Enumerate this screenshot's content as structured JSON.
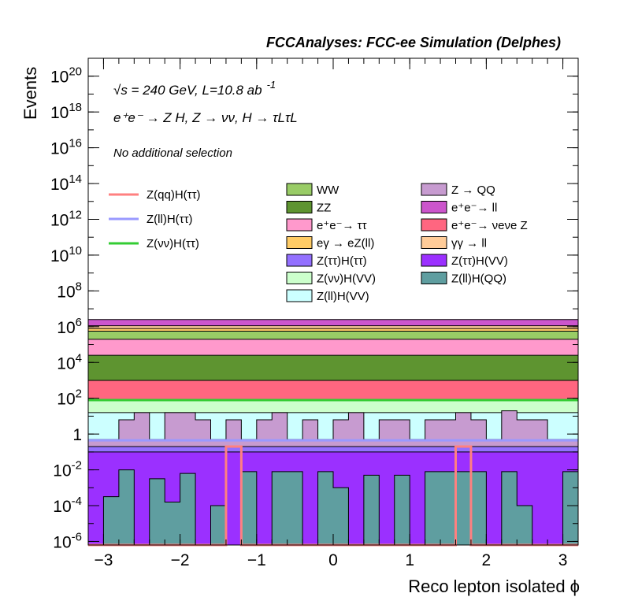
{
  "chart_data": {
    "type": "area",
    "title": "FCCAnalyses: FCC-ee Simulation (Delphes)",
    "xlabel": "Reco lepton isolated ϕ",
    "ylabel": "Events",
    "xlim": [
      -3.2,
      3.2
    ],
    "ylim_log10": [
      -6.2,
      21
    ],
    "yscale": "log",
    "x_ticks": [
      -3,
      -2,
      -1,
      0,
      1,
      2,
      3
    ],
    "y_ticks": [
      {
        "label": "10",
        "exp": "-6",
        "log": -6
      },
      {
        "label": "10",
        "exp": "-4",
        "log": -4
      },
      {
        "label": "10",
        "exp": "-2",
        "log": -2
      },
      {
        "label": "1",
        "exp": "",
        "log": 0
      },
      {
        "label": "10",
        "exp": "2",
        "log": 2
      },
      {
        "label": "10",
        "exp": "4",
        "log": 4
      },
      {
        "label": "10",
        "exp": "6",
        "log": 6
      },
      {
        "label": "10",
        "exp": "8",
        "log": 8
      },
      {
        "label": "10",
        "exp": "10",
        "log": 10
      },
      {
        "label": "10",
        "exp": "12",
        "log": 12
      },
      {
        "label": "10",
        "exp": "14",
        "log": 14
      },
      {
        "label": "10",
        "exp": "16",
        "log": 16
      },
      {
        "label": "10",
        "exp": "18",
        "log": 18
      },
      {
        "label": "10",
        "exp": "20",
        "log": 20
      }
    ],
    "annotations": {
      "sqrt_s": "√s = 240 GeV, L=10.8 ab",
      "sqrt_s_exp": "-1",
      "process": "e⁺e⁻ → Z H, Z → νν, H → τLτL",
      "selection": "No additional selection"
    },
    "stack_series": [
      {
        "name": "Z(ll)H(QQ)",
        "color": "#5f9ea0",
        "edges_log": [
          -6.2,
          -3.5,
          -2.0,
          -6.2,
          -2.5,
          -3.8,
          -2.2,
          -6.2,
          -4.0,
          -6.2,
          -2.1,
          -6.2,
          -2.1,
          -2.1,
          -6.2,
          -2.1,
          -3.0,
          -6.2,
          -2.3,
          -6.2,
          -2.3,
          -6.2,
          -2.1,
          -2.1,
          -2.1,
          -2.1,
          -6.2,
          -2.1,
          -4.0,
          -6.2,
          -6.2,
          -2.1
        ]
      },
      {
        "name": "Z(ττ)H(VV)",
        "color": "#9b30ff",
        "edges_log": [
          -1.0
        ]
      },
      {
        "name": "Z(ττ)H(ττ)",
        "color": "#9370ff",
        "edges_log": [
          -0.7
        ]
      },
      {
        "name": "Z → QQ",
        "color": "#c79bd0",
        "edges_log": [
          -0.3,
          -0.3,
          0.8,
          1.2,
          -0.3,
          1.2,
          1.2,
          0.8,
          -0.3,
          0.8,
          -0.3,
          0.8,
          1.2,
          -0.3,
          0.8,
          -0.3,
          0.8,
          1.2,
          -0.3,
          0.8,
          0.8,
          -0.3,
          0.8,
          0.8,
          1.2,
          0.8,
          -0.3,
          1.3,
          0.8,
          0.8,
          -0.3,
          -0.3
        ]
      },
      {
        "name": "Z(ll)H(VV)",
        "color": "#ccffff",
        "edges_log": [
          1.2
        ]
      },
      {
        "name": "Z(νν)H(VV)",
        "color": "#ccffcc",
        "edges_log": [
          1.9
        ]
      },
      {
        "name": "e⁺e⁻→ νeνe Z",
        "color": "#ff6680",
        "edges_log": [
          3.0
        ]
      },
      {
        "name": "ZZ",
        "color": "#5e9430",
        "edges_log": [
          4.4
        ]
      },
      {
        "name": "e⁺e⁻→ ττ",
        "color": "#ff99cc",
        "edges_log": [
          5.3
        ]
      },
      {
        "name": "WW",
        "color": "#99cc66",
        "edges_log": [
          5.75
        ]
      },
      {
        "name": "eγ → eZ(ll)",
        "color": "#ffcc66",
        "edges_log": [
          5.9
        ]
      },
      {
        "name": "γγ → ll",
        "color": "#ffcc99",
        "edges_log": [
          6.05
        ]
      },
      {
        "name": "e⁺e⁻→ ll",
        "color": "#cc55cc",
        "edges_log": [
          6.4
        ]
      }
    ],
    "line_series": [
      {
        "name": "Z(qq)H(ττ)",
        "color": "#ff8080",
        "width": 3,
        "peaks_x": [
          -1.4,
          1.6
        ],
        "peak_width": 0.2,
        "peak_log": -0.7,
        "base_log": -6.2
      },
      {
        "name": "Z(ll)H(ττ)",
        "color": "#9999ff",
        "width": 3,
        "level_log": -0.35
      },
      {
        "name": "Z(νν)H(ττ)",
        "color": "#33cc33",
        "width": 3,
        "level_log": 1.9
      }
    ],
    "legend_left": [
      {
        "label": "Z(qq)H(ττ)",
        "color": "#ff8080"
      },
      {
        "label": "Z(ll)H(ττ)",
        "color": "#9999ff"
      },
      {
        "label": "Z(νν)H(ττ)",
        "color": "#33cc33"
      }
    ],
    "legend_mid": [
      {
        "label": "WW",
        "color": "#99cc66"
      },
      {
        "label": "ZZ",
        "color": "#5e9430"
      },
      {
        "label": "e⁺e⁻→ ττ",
        "color": "#ff99cc"
      },
      {
        "label": "eγ → eZ(ll)",
        "color": "#ffcc66"
      },
      {
        "label": "Z(ττ)H(ττ)",
        "color": "#9370ff"
      },
      {
        "label": "Z(νν)H(VV)",
        "color": "#ccffcc"
      },
      {
        "label": "Z(ll)H(VV)",
        "color": "#ccffff"
      }
    ],
    "legend_right": [
      {
        "label": "Z → QQ",
        "color": "#c79bd0"
      },
      {
        "label": "e⁺e⁻→ ll",
        "color": "#cc55cc"
      },
      {
        "label": "e⁺e⁻→ νeνe Z",
        "color": "#ff6680"
      },
      {
        "label": "γγ → ll",
        "color": "#ffcc99"
      },
      {
        "label": "Z(ττ)H(VV)",
        "color": "#9b30ff"
      },
      {
        "label": "Z(ll)H(QQ)",
        "color": "#5f9ea0"
      }
    ]
  }
}
